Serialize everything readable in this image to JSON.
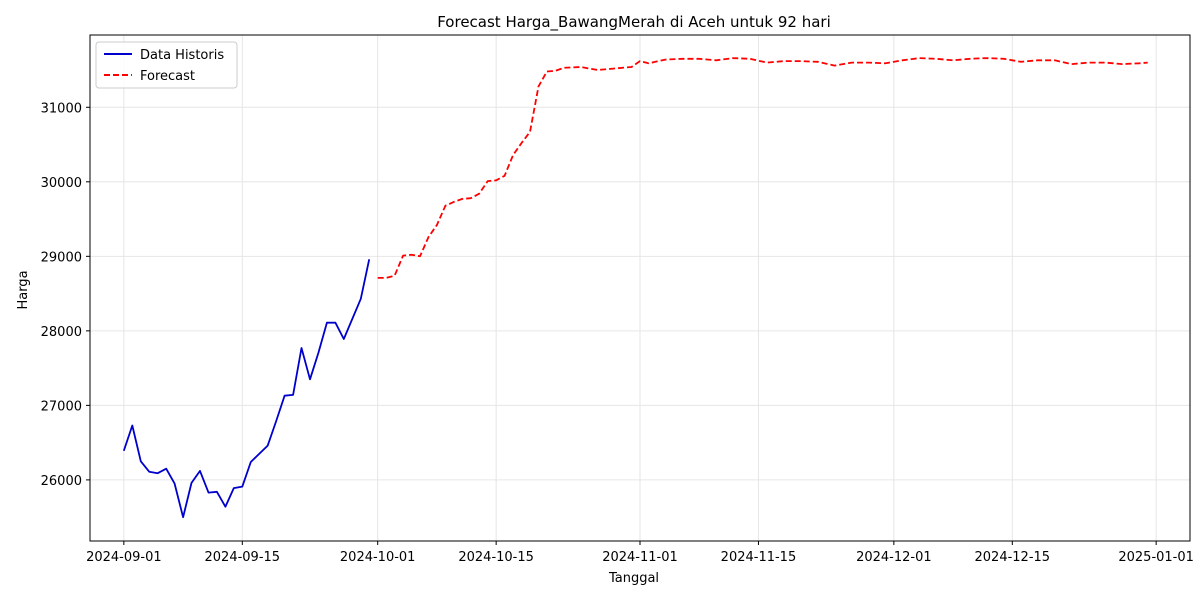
{
  "chart_data": {
    "type": "line",
    "title": "Forecast Harga_BawangMerah di Aceh untuk 92 hari",
    "xlabel": "Tanggal",
    "ylabel": "Harga",
    "xlim": [
      "2024-08-28",
      "2025-01-05"
    ],
    "ylim": [
      25180,
      31970
    ],
    "grid": true,
    "legend_position": "top-left",
    "x_ticks": [
      "2024-09-01",
      "2024-09-15",
      "2024-10-01",
      "2024-10-15",
      "2024-11-01",
      "2024-11-15",
      "2024-12-01",
      "2024-12-15",
      "2025-01-01"
    ],
    "y_ticks": [
      26000,
      27000,
      28000,
      29000,
      30000,
      31000
    ],
    "series": [
      {
        "name": "Data Historis",
        "color": "#0000cc",
        "style": "solid",
        "x": [
          "2024-09-01",
          "2024-09-02",
          "2024-09-03",
          "2024-09-04",
          "2024-09-05",
          "2024-09-06",
          "2024-09-07",
          "2024-09-08",
          "2024-09-09",
          "2024-09-10",
          "2024-09-11",
          "2024-09-12",
          "2024-09-13",
          "2024-09-14",
          "2024-09-15",
          "2024-09-16",
          "2024-09-18",
          "2024-09-19",
          "2024-09-20",
          "2024-09-21",
          "2024-09-22",
          "2024-09-23",
          "2024-09-24",
          "2024-09-25",
          "2024-09-26",
          "2024-09-27",
          "2024-09-29",
          "2024-09-30"
        ],
        "y": [
          26390,
          26730,
          26250,
          26110,
          26090,
          26150,
          25950,
          25500,
          25960,
          26120,
          25830,
          25840,
          25640,
          25890,
          25910,
          26240,
          26460,
          26790,
          27130,
          27140,
          27770,
          27350,
          27710,
          28110,
          28110,
          27890,
          28430,
          28960
        ]
      },
      {
        "name": "Forecast",
        "color": "#ff0000",
        "style": "dashed",
        "x": [
          "2024-10-01",
          "2024-10-02",
          "2024-10-03",
          "2024-10-04",
          "2024-10-05",
          "2024-10-06",
          "2024-10-07",
          "2024-10-08",
          "2024-10-09",
          "2024-10-10",
          "2024-10-11",
          "2024-10-12",
          "2024-10-13",
          "2024-10-14",
          "2024-10-15",
          "2024-10-16",
          "2024-10-17",
          "2024-10-18",
          "2024-10-19",
          "2024-10-20",
          "2024-10-21",
          "2024-10-22",
          "2024-10-23",
          "2024-10-25",
          "2024-10-27",
          "2024-10-29",
          "2024-10-31",
          "2024-11-01",
          "2024-11-02",
          "2024-11-04",
          "2024-11-06",
          "2024-11-08",
          "2024-11-10",
          "2024-11-12",
          "2024-11-14",
          "2024-11-16",
          "2024-11-18",
          "2024-11-20",
          "2024-11-22",
          "2024-11-24",
          "2024-11-26",
          "2024-11-28",
          "2024-11-30",
          "2024-12-02",
          "2024-12-04",
          "2024-12-06",
          "2024-12-08",
          "2024-12-10",
          "2024-12-12",
          "2024-12-14",
          "2024-12-16",
          "2024-12-18",
          "2024-12-20",
          "2024-12-22",
          "2024-12-24",
          "2024-12-26",
          "2024-12-28",
          "2024-12-30",
          "2024-12-31"
        ],
        "y": [
          28710,
          28710,
          28740,
          29010,
          29020,
          29000,
          29260,
          29420,
          29680,
          29730,
          29770,
          29780,
          29840,
          30010,
          30020,
          30080,
          30360,
          30520,
          30670,
          31280,
          31480,
          31490,
          31530,
          31540,
          31500,
          31520,
          31540,
          31620,
          31590,
          31640,
          31650,
          31650,
          31630,
          31660,
          31650,
          31600,
          31620,
          31620,
          31610,
          31560,
          31600,
          31600,
          31590,
          31630,
          31660,
          31650,
          31630,
          31650,
          31660,
          31650,
          31610,
          31630,
          31630,
          31580,
          31600,
          31600,
          31580,
          31590,
          31600
        ]
      }
    ]
  }
}
